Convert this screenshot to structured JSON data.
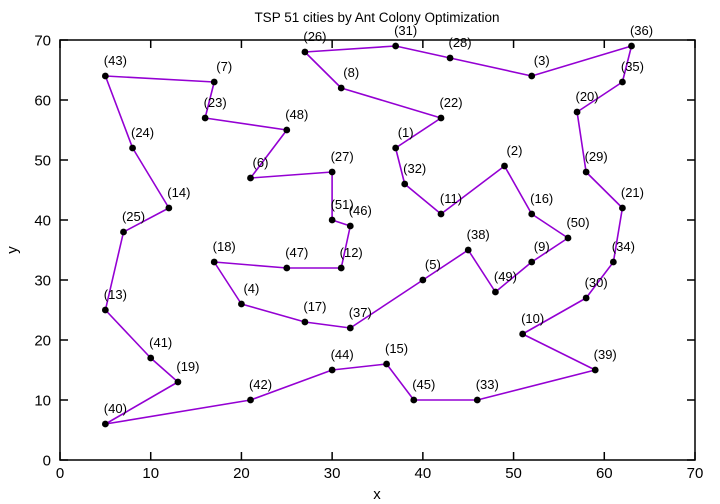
{
  "chart_data": {
    "type": "line",
    "title": "TSP 51 cities by Ant Colony Optimization",
    "xlabel": "x",
    "ylabel": "y",
    "xlim": [
      0,
      70
    ],
    "ylim": [
      0,
      70
    ],
    "xticks": [
      0,
      10,
      20,
      30,
      40,
      50,
      60,
      70
    ],
    "yticks": [
      0,
      10,
      20,
      30,
      40,
      50,
      60,
      70
    ],
    "grid": false,
    "legend": "none",
    "line_color": "#9400d3",
    "marker_color": "#000000",
    "frame_color": "#000000",
    "cities": [
      {
        "id": 1,
        "x": 37,
        "y": 52
      },
      {
        "id": 2,
        "x": 49,
        "y": 49
      },
      {
        "id": 3,
        "x": 52,
        "y": 64
      },
      {
        "id": 4,
        "x": 20,
        "y": 26
      },
      {
        "id": 5,
        "x": 40,
        "y": 30
      },
      {
        "id": 6,
        "x": 21,
        "y": 47
      },
      {
        "id": 7,
        "x": 17,
        "y": 63
      },
      {
        "id": 8,
        "x": 31,
        "y": 62
      },
      {
        "id": 9,
        "x": 52,
        "y": 33
      },
      {
        "id": 10,
        "x": 51,
        "y": 21
      },
      {
        "id": 11,
        "x": 42,
        "y": 41
      },
      {
        "id": 12,
        "x": 31,
        "y": 32
      },
      {
        "id": 13,
        "x": 5,
        "y": 25
      },
      {
        "id": 14,
        "x": 12,
        "y": 42
      },
      {
        "id": 15,
        "x": 36,
        "y": 16
      },
      {
        "id": 16,
        "x": 52,
        "y": 41
      },
      {
        "id": 17,
        "x": 27,
        "y": 23
      },
      {
        "id": 18,
        "x": 17,
        "y": 33
      },
      {
        "id": 19,
        "x": 13,
        "y": 13
      },
      {
        "id": 20,
        "x": 57,
        "y": 58
      },
      {
        "id": 21,
        "x": 62,
        "y": 42
      },
      {
        "id": 22,
        "x": 42,
        "y": 57
      },
      {
        "id": 23,
        "x": 16,
        "y": 57
      },
      {
        "id": 24,
        "x": 8,
        "y": 52
      },
      {
        "id": 25,
        "x": 7,
        "y": 38
      },
      {
        "id": 26,
        "x": 27,
        "y": 68
      },
      {
        "id": 27,
        "x": 30,
        "y": 48
      },
      {
        "id": 28,
        "x": 43,
        "y": 67
      },
      {
        "id": 29,
        "x": 58,
        "y": 48
      },
      {
        "id": 30,
        "x": 58,
        "y": 27
      },
      {
        "id": 31,
        "x": 37,
        "y": 69
      },
      {
        "id": 32,
        "x": 38,
        "y": 46
      },
      {
        "id": 33,
        "x": 46,
        "y": 10
      },
      {
        "id": 34,
        "x": 61,
        "y": 33
      },
      {
        "id": 35,
        "x": 62,
        "y": 63
      },
      {
        "id": 36,
        "x": 63,
        "y": 69
      },
      {
        "id": 37,
        "x": 32,
        "y": 22
      },
      {
        "id": 38,
        "x": 45,
        "y": 35
      },
      {
        "id": 39,
        "x": 59,
        "y": 15
      },
      {
        "id": 40,
        "x": 5,
        "y": 6
      },
      {
        "id": 41,
        "x": 10,
        "y": 17
      },
      {
        "id": 42,
        "x": 21,
        "y": 10
      },
      {
        "id": 43,
        "x": 5,
        "y": 64
      },
      {
        "id": 44,
        "x": 30,
        "y": 15
      },
      {
        "id": 45,
        "x": 39,
        "y": 10
      },
      {
        "id": 46,
        "x": 32,
        "y": 39
      },
      {
        "id": 47,
        "x": 25,
        "y": 32
      },
      {
        "id": 48,
        "x": 25,
        "y": 55
      },
      {
        "id": 49,
        "x": 48,
        "y": 28
      },
      {
        "id": 50,
        "x": 56,
        "y": 37
      },
      {
        "id": 51,
        "x": 30,
        "y": 40
      }
    ],
    "tour": [
      40,
      19,
      41,
      13,
      25,
      14,
      24,
      43,
      7,
      23,
      48,
      6,
      27,
      51,
      46,
      12,
      47,
      18,
      4,
      17,
      37,
      5,
      38,
      49,
      9,
      50,
      16,
      2,
      11,
      32,
      1,
      22,
      8,
      26,
      31,
      28,
      3,
      36,
      35,
      20,
      29,
      21,
      34,
      30,
      10,
      39,
      33,
      45,
      15,
      44,
      42,
      40
    ]
  }
}
